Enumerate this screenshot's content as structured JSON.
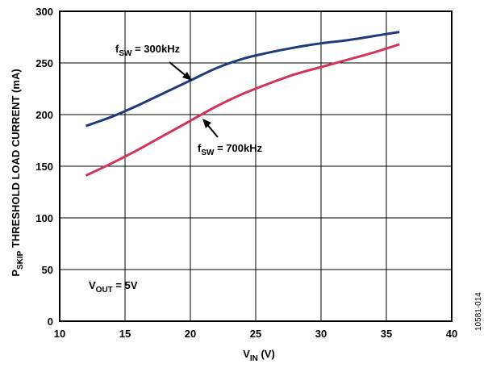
{
  "chart_data": {
    "type": "line",
    "xlabel": {
      "main": "V",
      "sub": "IN",
      "suffix": " (V)"
    },
    "ylabel": {
      "main": "P",
      "sub": "SKIP",
      "suffix": " THRESHOLD LOAD CURRENT (mA)"
    },
    "xlim": [
      10,
      40
    ],
    "ylim": [
      0,
      300
    ],
    "xticks": [
      10,
      15,
      20,
      25,
      30,
      35,
      40
    ],
    "yticks": [
      0,
      50,
      100,
      150,
      200,
      250,
      300
    ],
    "grid": true,
    "series": [
      {
        "name": "fSW = 300kHz",
        "color": "#1f3a7a",
        "x": [
          12,
          14,
          16,
          18,
          20,
          22,
          24,
          26,
          28,
          30,
          32,
          34,
          36
        ],
        "y": [
          189,
          198,
          209,
          221,
          233,
          245,
          254,
          260,
          265,
          269,
          272,
          276,
          280
        ]
      },
      {
        "name": "fSW = 700kHz",
        "color": "#d2335a",
        "x": [
          12,
          14,
          16,
          18,
          20,
          22,
          24,
          26,
          28,
          30,
          32,
          34,
          36
        ],
        "y": [
          141,
          153,
          166,
          180,
          194,
          208,
          220,
          230,
          239,
          246,
          253,
          260,
          268
        ]
      }
    ],
    "annotations": [
      {
        "main": "f",
        "sub": "SW",
        "suffix": " = 300kHz",
        "arrow_to": [
          20.3,
          233
        ]
      },
      {
        "main": "f",
        "sub": "SW",
        "suffix": " = 700kHz",
        "arrow_to": [
          21.2,
          200
        ]
      },
      {
        "main": "V",
        "sub": "OUT",
        "suffix": " = 5V"
      }
    ],
    "figure_code": "10581-014"
  }
}
